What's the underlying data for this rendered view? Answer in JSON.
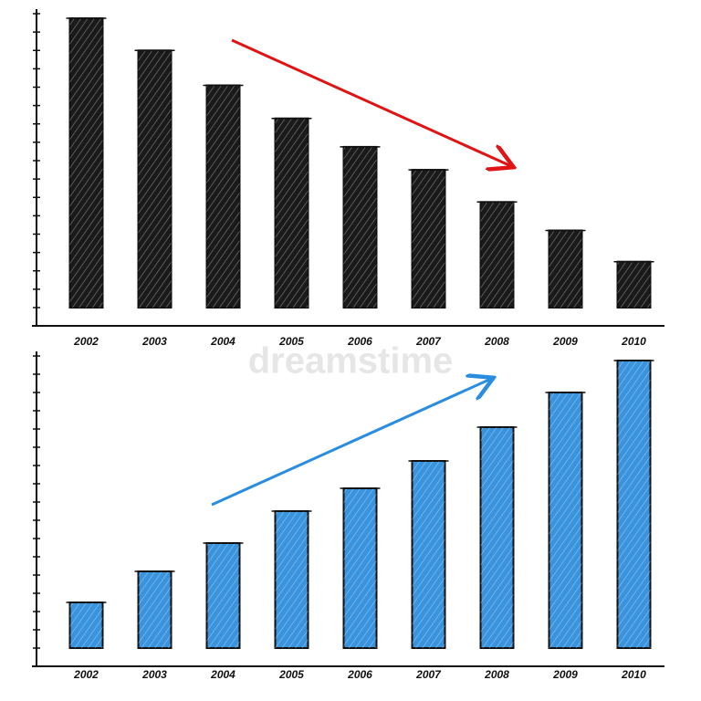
{
  "watermark": "dreamstime",
  "chart_data": [
    {
      "type": "bar",
      "categories": [
        "2002",
        "2003",
        "2004",
        "2005",
        "2006",
        "2007",
        "2008",
        "2009",
        "2010"
      ],
      "values": [
        15.75,
        14,
        12.1,
        10.3,
        8.75,
        7.5,
        5.75,
        4.2,
        2.5
      ],
      "color": "#1a1a1a",
      "ylim": [
        0,
        16
      ],
      "yticks": [
        0,
        1,
        2,
        3,
        4,
        5,
        6,
        7,
        8,
        9,
        10,
        11,
        12,
        13,
        14,
        15,
        16
      ]
    },
    {
      "type": "bar",
      "categories": [
        "2002",
        "2003",
        "2004",
        "2005",
        "2006",
        "2007",
        "2008",
        "2009",
        "2010"
      ],
      "values": [
        2.5,
        4.2,
        5.75,
        7.5,
        8.75,
        10.25,
        12.1,
        14,
        15.75
      ],
      "color": "#3a93dd",
      "ylim": [
        0,
        16
      ],
      "yticks": [
        0,
        1,
        2,
        3,
        4,
        5,
        6,
        7,
        8,
        9,
        10,
        11,
        12,
        13,
        14,
        15,
        16
      ]
    }
  ]
}
